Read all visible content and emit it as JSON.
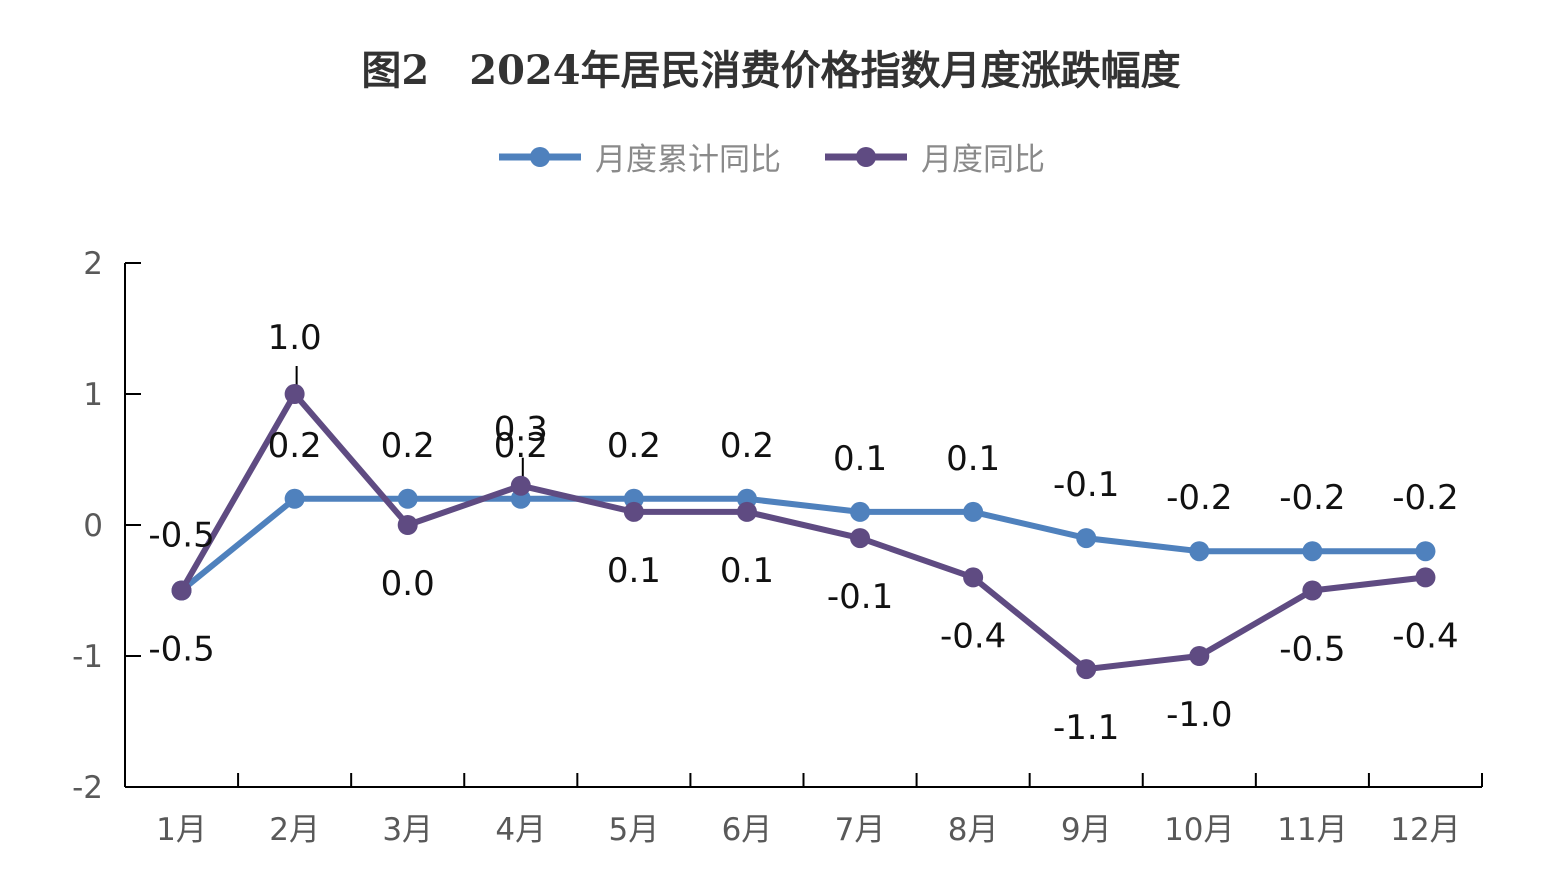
{
  "chart_data": {
    "type": "line",
    "title": "图2　2024年居民消费价格指数月度涨跌幅度",
    "categories": [
      "1月",
      "2月",
      "3月",
      "4月",
      "5月",
      "6月",
      "7月",
      "8月",
      "9月",
      "10月",
      "11月",
      "12月"
    ],
    "series": [
      {
        "name": "月度累计同比",
        "color": "#4f81bd",
        "values": [
          -0.5,
          0.2,
          0.2,
          0.2,
          0.2,
          0.2,
          0.1,
          0.1,
          -0.1,
          -0.2,
          -0.2,
          -0.2
        ],
        "labels": [
          "-0.5",
          "0.2",
          "0.2",
          "0.2",
          "0.2",
          "0.2",
          "0.1",
          "0.1",
          "-0.1",
          "-0.2",
          "-0.2",
          "-0.2"
        ]
      },
      {
        "name": "月度同比",
        "color": "#5f4b82",
        "values": [
          -0.5,
          1.0,
          0.0,
          0.3,
          0.1,
          0.1,
          -0.1,
          -0.4,
          -1.1,
          -1.0,
          -0.5,
          -0.4
        ],
        "labels": [
          "-0.5",
          "1.0",
          "0.0",
          "0.3",
          "0.1",
          "0.1",
          "-0.1",
          "-0.4",
          "-1.1",
          "-1.0",
          "-0.5",
          "-0.4"
        ]
      }
    ],
    "ylim": [
      -2,
      2
    ],
    "yticks": [
      -2,
      -1,
      0,
      1,
      2
    ],
    "ytick_labels": [
      "-2",
      "-1",
      "0",
      "1",
      "2"
    ],
    "xlabel": "",
    "ylabel": "",
    "legend_position": "top-center",
    "grid": false
  }
}
